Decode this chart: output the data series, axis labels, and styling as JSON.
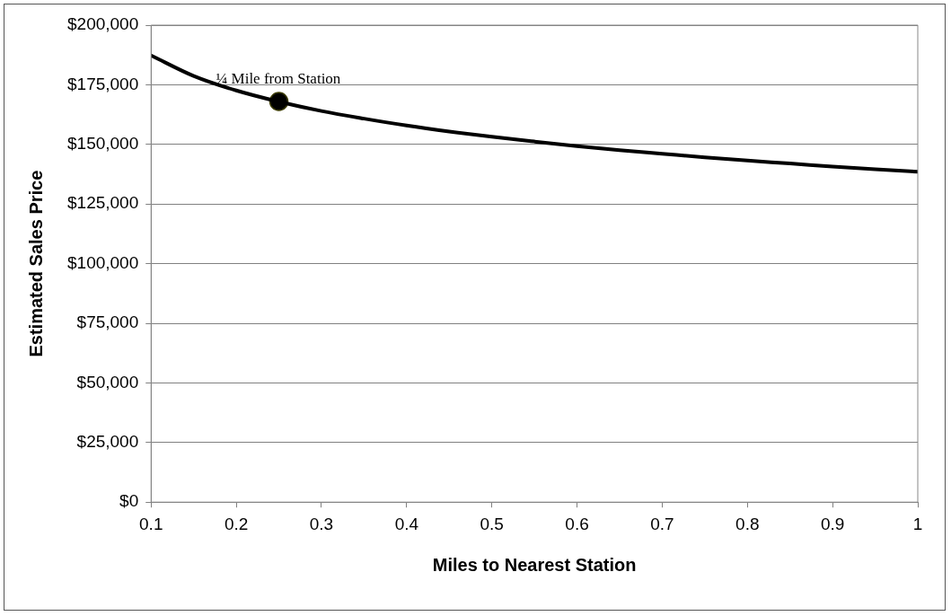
{
  "chart_data": {
    "type": "line",
    "xlabel": "Miles to Nearest Station",
    "ylabel": "Estimated Sales Price",
    "xlim": [
      0.1,
      1
    ],
    "xticks": [
      0.1,
      0.2,
      0.3,
      0.4,
      0.5,
      0.6,
      0.7,
      0.8,
      0.9,
      1
    ],
    "ylim": [
      0,
      200000
    ],
    "yticks": [
      {
        "value": 0,
        "label": "$0"
      },
      {
        "value": 25000,
        "label": "$25,000"
      },
      {
        "value": 50000,
        "label": "$50,000"
      },
      {
        "value": 75000,
        "label": "$75,000"
      },
      {
        "value": 100000,
        "label": "$100,000"
      },
      {
        "value": 125000,
        "label": "$125,000"
      },
      {
        "value": 150000,
        "label": "$150,000"
      },
      {
        "value": 175000,
        "label": "$175,000"
      },
      {
        "value": 200000,
        "label": "$200,000"
      }
    ],
    "grid": "y",
    "legend": false,
    "marker": "none",
    "line_style": "solid",
    "series": [
      {
        "color": "#000000",
        "x": [
          0.1,
          0.15,
          0.2,
          0.25,
          0.3,
          0.35,
          0.4,
          0.45,
          0.5,
          0.55,
          0.6,
          0.65,
          0.7,
          0.75,
          0.8,
          0.85,
          0.9,
          0.95,
          1
        ],
        "values": [
          187300,
          178700,
          172600,
          167900,
          164000,
          160800,
          157900,
          155400,
          153200,
          151200,
          149300,
          147600,
          146100,
          144600,
          143200,
          142000,
          140700,
          139600,
          138500
        ]
      },
      {
        "type": "scatter",
        "color": "#000000",
        "marker": "circle",
        "x": [
          0.25
        ],
        "values": [
          168000
        ]
      }
    ],
    "annotations": [
      {
        "text": "¼ Mile from Station",
        "x": 0.25,
        "y": 168000
      }
    ]
  }
}
